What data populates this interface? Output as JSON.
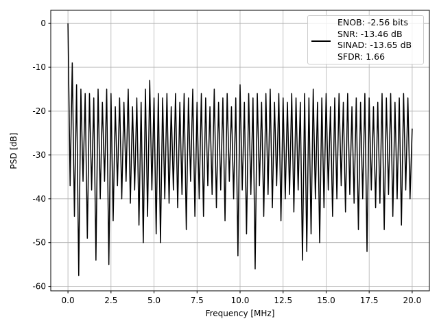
{
  "chart_data": {
    "type": "line",
    "xlabel": "Frequency [MHz]",
    "ylabel": "PSD [dB]",
    "xlim": [
      -1,
      21
    ],
    "ylim": [
      -61,
      3
    ],
    "xticks": [
      {
        "value": 0,
        "label": "0.0"
      },
      {
        "value": 2.5,
        "label": "2.5"
      },
      {
        "value": 5,
        "label": "5.0"
      },
      {
        "value": 7.5,
        "label": "7.5"
      },
      {
        "value": 10,
        "label": "10.0"
      },
      {
        "value": 12.5,
        "label": "12.5"
      },
      {
        "value": 15,
        "label": "15.0"
      },
      {
        "value": 17.5,
        "label": "17.5"
      },
      {
        "value": 20,
        "label": "20.0"
      }
    ],
    "yticks": [
      0,
      -10,
      -20,
      -30,
      -40,
      -50,
      -60
    ],
    "grid": true,
    "legend": "upper right",
    "x": [
      0,
      0.125,
      0.25,
      0.375,
      0.5,
      0.625,
      0.75,
      0.875,
      1,
      1.125,
      1.25,
      1.375,
      1.5,
      1.625,
      1.75,
      1.875,
      2,
      2.125,
      2.25,
      2.375,
      2.5,
      2.625,
      2.75,
      2.875,
      3,
      3.125,
      3.25,
      3.375,
      3.5,
      3.625,
      3.75,
      3.875,
      4,
      4.125,
      4.25,
      4.375,
      4.5,
      4.625,
      4.75,
      4.875,
      5,
      5.125,
      5.25,
      5.375,
      5.5,
      5.625,
      5.75,
      5.875,
      6,
      6.125,
      6.25,
      6.375,
      6.5,
      6.625,
      6.75,
      6.875,
      7,
      7.125,
      7.25,
      7.375,
      7.5,
      7.625,
      7.75,
      7.875,
      8,
      8.125,
      8.25,
      8.375,
      8.5,
      8.625,
      8.75,
      8.875,
      9,
      9.125,
      9.25,
      9.375,
      9.5,
      9.625,
      9.75,
      9.875,
      10,
      10.125,
      10.25,
      10.375,
      10.5,
      10.625,
      10.75,
      10.875,
      11,
      11.125,
      11.25,
      11.375,
      11.5,
      11.625,
      11.75,
      11.875,
      12,
      12.125,
      12.25,
      12.375,
      12.5,
      12.625,
      12.75,
      12.875,
      13,
      13.125,
      13.25,
      13.375,
      13.5,
      13.625,
      13.75,
      13.875,
      14,
      14.125,
      14.25,
      14.375,
      14.5,
      14.625,
      14.75,
      14.875,
      15,
      15.125,
      15.25,
      15.375,
      15.5,
      15.625,
      15.75,
      15.875,
      16,
      16.125,
      16.25,
      16.375,
      16.5,
      16.625,
      16.75,
      16.875,
      17,
      17.125,
      17.25,
      17.375,
      17.5,
      17.625,
      17.75,
      17.875,
      18,
      18.125,
      18.25,
      18.375,
      18.5,
      18.625,
      18.75,
      18.875,
      19,
      19.125,
      19.25,
      19.375,
      19.5,
      19.625,
      19.75,
      19.875,
      20
    ],
    "series": [
      {
        "name": "ENOB: -2.56 bits\nSNR: -13.46 dB\nSINAD: -13.65 dB\nSFDR: 1.66",
        "color": "#000000",
        "values": [
          0,
          -37,
          -9,
          -44,
          -14,
          -57.5,
          -15,
          -36,
          -16,
          -49,
          -16,
          -38,
          -17,
          -54,
          -15,
          -40,
          -18,
          -36,
          -15,
          -55,
          -16,
          -45,
          -19,
          -37,
          -17,
          -40,
          -18,
          -36,
          -15,
          -41,
          -19,
          -38,
          -17,
          -46,
          -18,
          -50,
          -15,
          -44,
          -13,
          -38,
          -17,
          -48,
          -16,
          -50,
          -17,
          -40,
          -16,
          -41,
          -19,
          -38,
          -16,
          -42,
          -18,
          -39,
          -16,
          -47,
          -17,
          -36,
          -15,
          -44,
          -18,
          -40,
          -16,
          -44,
          -17,
          -37,
          -19,
          -39,
          -15,
          -42,
          -18,
          -38,
          -17,
          -45,
          -16,
          -36,
          -19,
          -40,
          -17,
          -53,
          -14,
          -38,
          -18,
          -48,
          -16,
          -39,
          -17,
          -56,
          -16,
          -37,
          -18,
          -44,
          -16,
          -39,
          -15,
          -42,
          -18,
          -37,
          -16,
          -45,
          -17,
          -40,
          -18,
          -39,
          -16,
          -43,
          -17,
          -38,
          -18,
          -54,
          -16,
          -52,
          -17,
          -48,
          -15,
          -40,
          -18,
          -50,
          -17,
          -42,
          -16,
          -38,
          -19,
          -44,
          -17,
          -40,
          -16,
          -37,
          -18,
          -43,
          -16,
          -39,
          -19,
          -41,
          -17,
          -47,
          -18,
          -40,
          -16,
          -52,
          -17,
          -38,
          -19,
          -42,
          -18,
          -41,
          -16,
          -47,
          -17,
          -39,
          -16,
          -44,
          -18,
          -40,
          -17,
          -46,
          -16,
          -38,
          -17,
          -40,
          -24
        ]
      }
    ]
  }
}
